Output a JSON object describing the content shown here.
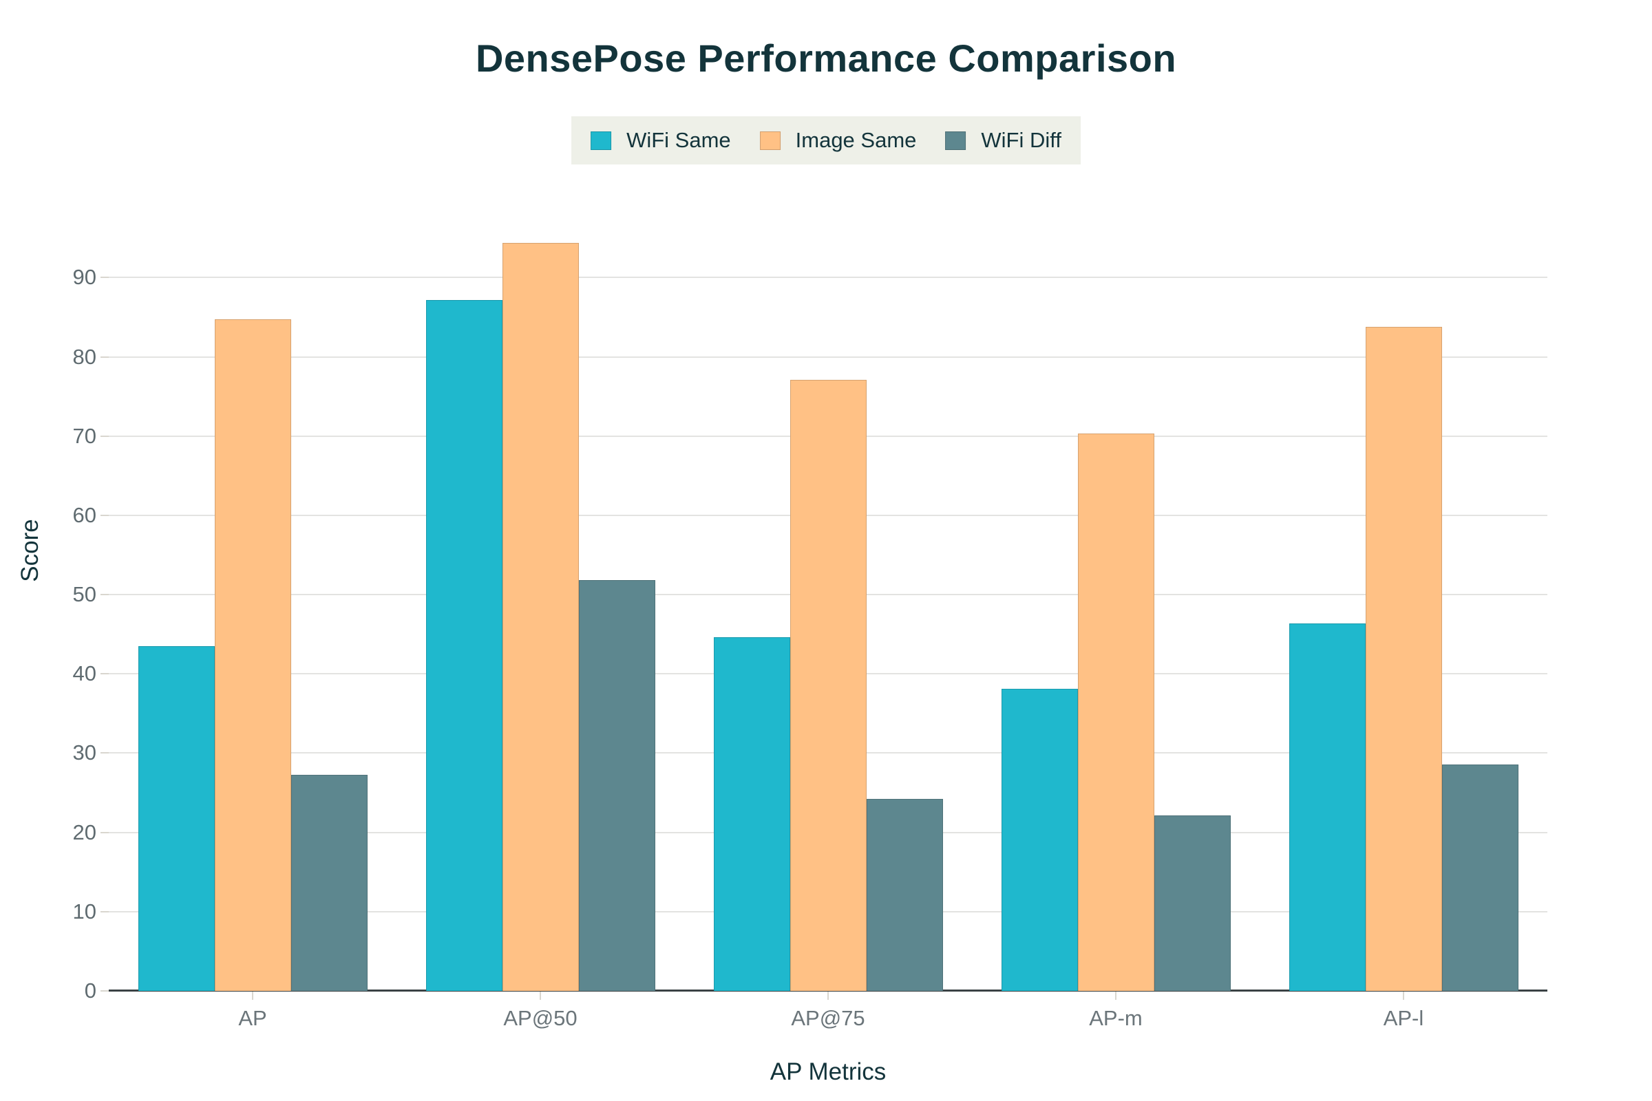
{
  "page": {
    "background": "#ffffff"
  },
  "chart_data": {
    "type": "bar",
    "title": "DensePose Performance Comparison",
    "categories": [
      "AP",
      "AP@50",
      "AP@75",
      "AP-m",
      "AP-l"
    ],
    "series": [
      {
        "name": "WiFi Same",
        "color": "#1FB8CD",
        "values": [
          43.5,
          87.2,
          44.6,
          38.1,
          46.4
        ]
      },
      {
        "name": "Image Same",
        "color": "#FFC185",
        "values": [
          84.7,
          94.4,
          77.1,
          70.3,
          83.8
        ]
      },
      {
        "name": "WiFi Diff",
        "color": "#5D878F",
        "values": [
          27.3,
          51.8,
          24.2,
          22.1,
          28.6
        ]
      }
    ],
    "xlabel": "AP Metrics",
    "ylabel": "Score",
    "ylim": [
      0,
      95.5
    ],
    "yticks": [
      0,
      10,
      20,
      30,
      40,
      50,
      60,
      70,
      80,
      90
    ],
    "grid": true,
    "legend_position": "top-center"
  },
  "style": {
    "title_color": "#13343B",
    "axis_title_color": "#13343B",
    "y_tick_label_color": "#5F6B70",
    "x_tick_label_color": "#6B757A",
    "legend_bg": "#EEF0E8",
    "legend_text_color": "#13343B",
    "grid_color": "#E3E3E1",
    "axis_line_color": "#3A4244",
    "tick_mark_color": "#D9D6CF"
  }
}
